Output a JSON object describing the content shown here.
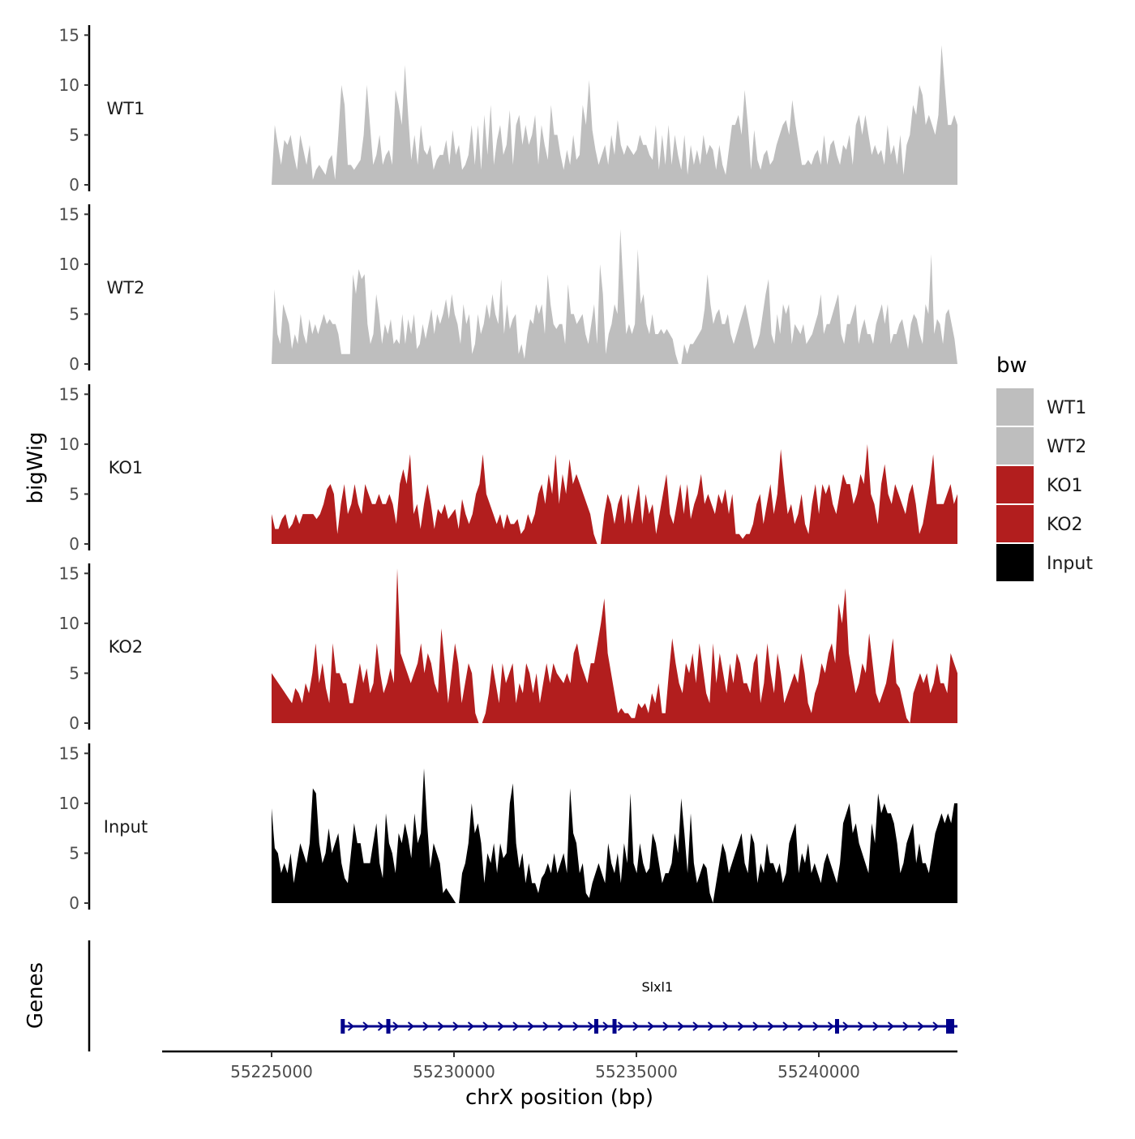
{
  "colors": {
    "WT": "#bebebe",
    "KO": "#b21e1e",
    "Input": "#000000",
    "gene": "#00008b"
  },
  "chart_data": {
    "type": "area",
    "xlabel": "chrX position (bp)",
    "ylabel": "bigWig",
    "genes_label": "Genes",
    "x_range": [
      55222000,
      55243800
    ],
    "data_x_range": [
      55225000,
      55243800
    ],
    "x_ticks": [
      55225000,
      55230000,
      55235000,
      55240000
    ],
    "x_tick_labels": [
      "55225000",
      "55230000",
      "55235000",
      "55240000"
    ],
    "y_range": [
      0,
      16
    ],
    "y_ticks": [
      0,
      5,
      10,
      15
    ],
    "y_tick_labels": [
      "0",
      "5",
      "10",
      "15"
    ],
    "legend": {
      "title": "bw",
      "entries": [
        {
          "label": "WT1",
          "color_key": "WT"
        },
        {
          "label": "WT2",
          "color_key": "WT"
        },
        {
          "label": "KO1",
          "color_key": "KO"
        },
        {
          "label": "KO2",
          "color_key": "KO"
        },
        {
          "label": "Input",
          "color_key": "Input"
        }
      ]
    },
    "series": [
      {
        "name": "WT1",
        "color_key": "WT",
        "values": [
          0,
          6,
          4,
          2,
          4.5,
          4,
          5,
          3,
          1.5,
          5,
          3.5,
          2,
          4,
          0.5,
          1.5,
          2,
          1.5,
          1,
          2.5,
          3,
          0.5,
          5,
          10,
          8,
          2,
          2,
          1.5,
          2,
          2.5,
          5,
          10,
          6,
          2,
          3,
          5,
          2,
          3,
          3.5,
          2,
          9.5,
          8,
          6,
          12,
          7,
          2.5,
          5,
          2,
          6,
          3.5,
          3,
          4,
          1.5,
          2.5,
          3,
          3,
          4.5,
          2,
          5.5,
          3,
          4,
          1.5,
          2,
          3,
          6,
          2,
          6,
          1.5,
          7,
          3,
          8,
          2,
          4.5,
          6,
          3,
          4,
          7.5,
          2,
          6,
          7,
          4,
          6,
          4,
          5,
          7,
          2,
          6,
          4,
          2.5,
          8,
          5,
          5,
          3,
          1.5,
          3.5,
          2,
          5,
          2.5,
          3,
          8,
          6,
          10.5,
          5.5,
          3.5,
          2,
          3,
          4,
          2,
          5,
          3,
          6.5,
          4,
          3,
          4,
          3.5,
          3,
          3.5,
          5,
          4,
          4,
          3,
          2.5,
          6,
          1.5,
          5,
          2,
          6,
          2,
          5,
          3,
          1.5,
          5,
          1,
          4,
          2,
          3.5,
          2,
          5,
          3,
          4,
          3.5,
          1.5,
          4,
          2,
          1,
          3.5,
          6,
          6,
          7,
          5,
          9.5,
          6,
          1.5,
          5.5,
          2.5,
          1.5,
          3,
          3.5,
          2,
          2.5,
          4,
          5,
          6,
          6.5,
          5,
          8.5,
          6,
          4,
          2,
          2,
          2.5,
          2,
          3,
          3.5,
          2,
          5,
          2,
          4,
          4.5,
          3,
          2,
          4,
          3.5,
          5,
          2,
          6,
          7,
          5,
          7,
          5,
          3,
          4,
          3,
          3.5,
          2,
          6,
          3,
          4,
          2,
          5,
          1,
          4,
          5,
          8,
          7,
          10,
          9,
          6,
          7,
          6,
          5,
          7,
          14,
          10,
          6,
          6,
          7,
          6
        ]
      },
      {
        "name": "WT2",
        "color_key": "WT",
        "values": [
          0,
          7.5,
          3,
          2,
          6,
          5,
          4,
          1.5,
          3,
          2,
          5,
          3,
          2,
          4.5,
          3,
          4,
          3,
          4,
          5,
          4,
          4.5,
          4,
          4,
          3,
          1,
          1,
          1,
          1,
          9,
          7,
          9.5,
          8.5,
          9,
          4,
          2,
          3,
          7,
          5,
          2,
          4,
          3,
          4.5,
          2,
          2.5,
          2,
          5,
          2,
          4.5,
          3,
          5,
          1.5,
          2,
          4,
          2.5,
          4,
          5.5,
          3,
          5,
          4,
          5,
          6.5,
          4.5,
          7,
          5,
          4,
          2,
          6,
          4,
          5,
          1,
          2,
          5,
          3,
          4,
          6,
          4.5,
          7,
          5,
          4,
          8.5,
          3,
          6,
          3.5,
          4.5,
          5,
          1,
          2,
          0.5,
          3,
          4.5,
          4,
          6,
          5,
          6,
          3,
          9,
          6,
          4,
          3.5,
          4,
          4,
          2,
          8,
          5,
          5,
          4,
          4.5,
          5,
          3,
          2,
          4,
          6,
          2,
          10,
          7,
          1,
          3,
          4,
          6,
          5,
          13.5,
          8,
          3,
          4,
          3,
          4,
          11.5,
          6,
          7,
          4,
          3,
          5,
          3,
          3,
          3.5,
          3,
          3.5,
          3,
          2.5,
          1,
          0,
          0,
          2,
          1,
          2,
          2,
          2.5,
          3,
          3.5,
          5.5,
          9,
          6,
          4,
          5,
          5.5,
          4,
          4,
          5,
          3,
          2,
          3,
          4,
          5,
          6,
          4.5,
          3,
          1.5,
          2,
          3,
          5,
          7,
          8.5,
          3,
          2,
          5,
          3,
          6,
          5,
          6,
          2,
          4,
          3.5,
          3,
          4,
          2,
          2.5,
          3,
          4,
          5,
          7,
          3,
          4,
          4,
          5,
          6,
          7,
          3,
          2,
          4,
          4,
          5,
          6,
          2,
          3.5,
          4.5,
          3,
          3,
          2,
          4,
          5,
          6,
          4,
          6,
          2,
          3,
          3,
          4,
          4.5,
          3,
          1.5,
          4,
          5,
          4.5,
          3,
          2,
          6,
          5,
          11,
          3,
          4.5,
          4,
          2,
          5,
          5.5,
          4,
          2.5,
          0
        ]
      },
      {
        "name": "KO1",
        "color_key": "KO",
        "values": [
          3,
          1.5,
          1.5,
          2.5,
          3,
          1.5,
          2,
          3,
          2,
          3,
          3,
          3,
          3,
          2.5,
          3,
          4,
          5.5,
          6,
          5,
          1,
          4,
          6,
          3,
          4,
          6,
          4,
          3,
          6,
          5,
          4,
          4,
          5,
          4,
          4,
          5,
          4,
          2,
          6,
          7.5,
          6,
          9,
          3,
          4,
          1.5,
          4,
          6,
          4,
          1.5,
          3.5,
          3,
          4,
          2.5,
          3,
          3.5,
          1.5,
          4.5,
          3,
          2,
          3,
          5,
          6,
          9,
          5,
          4,
          3,
          2,
          3,
          1.5,
          3,
          2,
          2,
          2.5,
          1,
          1.5,
          3,
          2,
          3,
          5,
          6,
          4,
          7,
          5,
          9,
          4,
          7,
          5,
          8.5,
          6,
          7,
          6,
          5,
          4,
          3,
          1,
          0,
          0,
          3,
          5,
          4,
          2,
          4,
          5,
          2,
          5,
          2,
          4,
          6,
          2,
          5,
          3,
          4,
          1,
          3,
          5,
          7,
          3,
          2,
          4,
          6,
          3,
          6,
          2.5,
          4,
          5,
          7,
          4,
          5,
          4,
          3,
          5,
          4,
          5.5,
          3,
          5,
          1,
          1,
          0.5,
          1,
          1,
          2,
          4,
          5,
          2,
          4,
          6,
          3,
          5,
          9.5,
          6,
          3,
          4,
          2,
          3,
          5,
          2,
          1,
          4,
          6,
          3,
          6,
          5,
          6,
          4,
          3,
          5,
          7,
          6,
          6,
          4,
          5,
          7,
          6,
          10,
          5,
          4,
          2,
          6,
          8,
          5,
          4,
          6,
          5,
          4,
          3,
          5,
          6,
          4,
          1,
          2,
          4,
          6,
          9,
          4,
          4,
          4,
          5,
          6,
          4,
          5
        ]
      },
      {
        "name": "KO2",
        "color_key": "KO",
        "values": [
          5,
          4.5,
          4,
          3.5,
          3,
          2.5,
          2,
          3.5,
          3,
          2,
          4,
          3,
          5,
          8,
          4,
          6,
          3.5,
          2,
          8,
          5,
          5,
          4,
          4,
          2,
          2,
          4,
          6,
          4,
          5.5,
          3,
          4,
          8,
          5,
          3,
          4,
          5.5,
          4,
          15.5,
          7,
          6,
          5,
          4,
          5,
          6,
          8,
          5,
          7,
          6,
          4,
          3,
          9.5,
          6,
          2,
          5,
          8,
          6,
          2,
          4,
          6,
          5,
          1,
          0,
          0,
          1,
          3,
          6,
          4,
          2,
          6,
          4,
          5,
          6,
          2,
          4,
          3,
          6,
          5,
          3,
          5,
          2,
          4,
          6,
          4,
          6,
          5,
          4.5,
          4,
          5,
          4,
          7,
          8,
          6,
          5,
          4,
          6,
          6,
          8,
          10,
          12.5,
          7,
          5,
          3,
          1,
          1.5,
          1,
          1,
          0.5,
          0.5,
          2,
          1.5,
          2,
          1,
          3,
          2,
          4,
          1,
          1,
          5,
          8.5,
          6,
          4,
          3,
          6,
          5,
          7,
          4,
          8,
          5.5,
          3,
          2,
          8,
          4,
          7,
          5,
          3,
          6,
          4,
          7,
          6,
          4,
          4,
          3,
          6,
          7,
          2,
          4,
          8,
          5,
          3,
          7,
          5,
          2,
          3,
          4,
          5,
          4,
          7,
          5,
          2,
          1,
          3,
          4,
          6,
          5,
          7,
          8,
          6,
          12,
          10,
          13.5,
          7,
          5,
          3,
          4,
          6,
          5,
          9,
          6,
          3,
          2,
          3,
          4,
          6,
          8.5,
          4,
          3.5,
          2,
          0.5,
          0,
          3,
          4,
          5,
          4,
          5,
          3,
          4,
          6,
          4,
          4,
          3,
          7,
          6,
          5
        ]
      },
      {
        "name": "Input",
        "color_key": "Input",
        "values": [
          9.5,
          5.5,
          5,
          3,
          4,
          3,
          5,
          2,
          4,
          6,
          5,
          4,
          6,
          11.5,
          11,
          6,
          4,
          5,
          7.5,
          5,
          6,
          7,
          4,
          2.5,
          2,
          5,
          8,
          6,
          6,
          4,
          4,
          4,
          6,
          8,
          4,
          2.5,
          9,
          6,
          5,
          3,
          7,
          6,
          8,
          6.5,
          4.5,
          9,
          6,
          7,
          13.5,
          8,
          3.5,
          6,
          5,
          4,
          1,
          1.5,
          1,
          0.5,
          0,
          0,
          3,
          4,
          6,
          10,
          7,
          8,
          6,
          2,
          5,
          4,
          6,
          3,
          6,
          4.5,
          5,
          10,
          12,
          6,
          3.5,
          5,
          2,
          4,
          2,
          2,
          1,
          2.5,
          3,
          4,
          3,
          5,
          3,
          4,
          5,
          3,
          11.5,
          7,
          6,
          3,
          4,
          1,
          0.5,
          2,
          3,
          4,
          3,
          2,
          6,
          4,
          3,
          5,
          2,
          6,
          4,
          11,
          4,
          3,
          6,
          4,
          3,
          3.5,
          7,
          6,
          4,
          2,
          3,
          3,
          4,
          7,
          5,
          10.5,
          7,
          3,
          9,
          4,
          2,
          3,
          4,
          3.5,
          1,
          0,
          2,
          4,
          6,
          5,
          3,
          4,
          5,
          6,
          7,
          4,
          3,
          7,
          6,
          2,
          4,
          3,
          6,
          4,
          4,
          3,
          4,
          2,
          3,
          6,
          7,
          8,
          3,
          5,
          4,
          6,
          3,
          4,
          3,
          2,
          4,
          5,
          4,
          3,
          2,
          4,
          8,
          9,
          10,
          7,
          8,
          6,
          5,
          4,
          3,
          8,
          6,
          11,
          9,
          10,
          9,
          9,
          8,
          6,
          3,
          4,
          6,
          7,
          8,
          4,
          6,
          4,
          4,
          3,
          5,
          7,
          8,
          9,
          8,
          9,
          8,
          10,
          10
        ]
      }
    ],
    "gene_track": {
      "name": "Slxl1",
      "start": 55226900,
      "end": 55243800,
      "strand": "+",
      "exon_positions": [
        55226950,
        55228200,
        55233900,
        55234400,
        55240500,
        55243600
      ]
    }
  }
}
